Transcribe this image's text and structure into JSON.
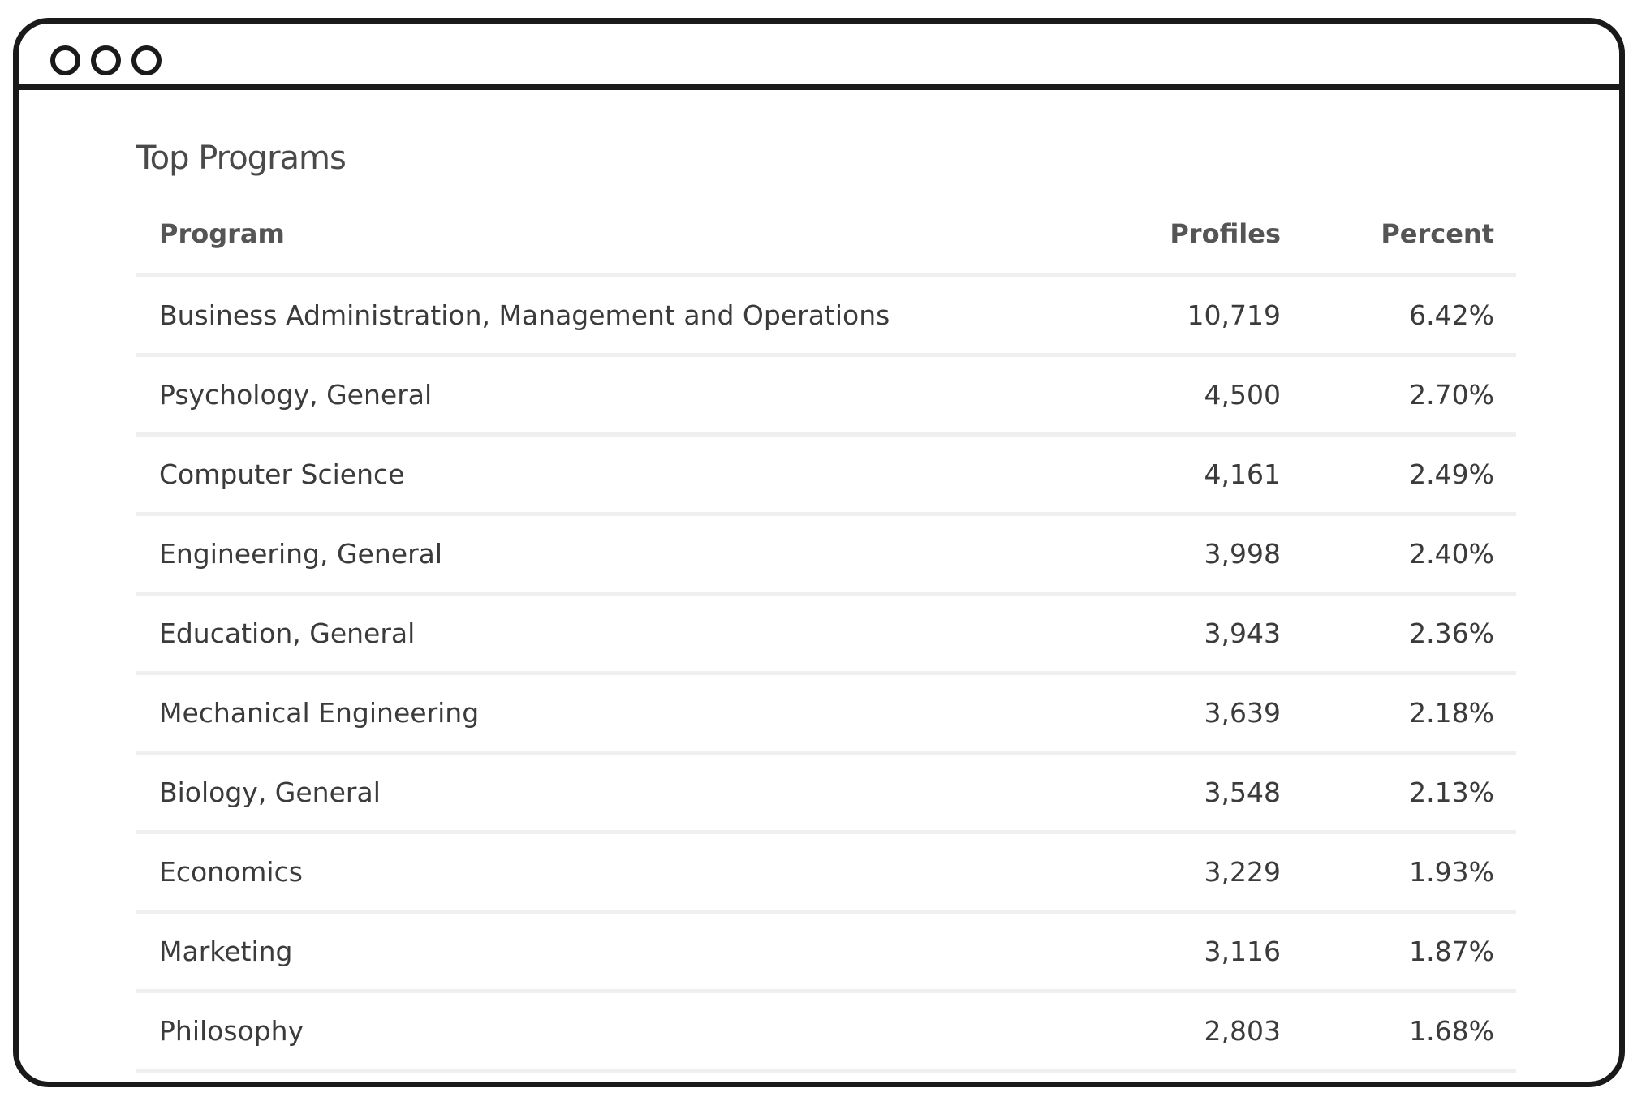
{
  "window": {
    "controls": [
      "dot",
      "dot",
      "dot"
    ]
  },
  "section": {
    "title": "Top Programs"
  },
  "table": {
    "columns": [
      "Program",
      "Profiles",
      "Percent"
    ],
    "rows": [
      {
        "program": "Business Administration, Management and Operations",
        "profiles": "10,719",
        "percent": "6.42%"
      },
      {
        "program": "Psychology, General",
        "profiles": "4,500",
        "percent": "2.70%"
      },
      {
        "program": "Computer Science",
        "profiles": "4,161",
        "percent": "2.49%"
      },
      {
        "program": "Engineering, General",
        "profiles": "3,998",
        "percent": "2.40%"
      },
      {
        "program": "Education, General",
        "profiles": "3,943",
        "percent": "2.36%"
      },
      {
        "program": "Mechanical Engineering",
        "profiles": "3,639",
        "percent": "2.18%"
      },
      {
        "program": "Biology, General",
        "profiles": "3,548",
        "percent": "2.13%"
      },
      {
        "program": "Economics",
        "profiles": "3,229",
        "percent": "1.93%"
      },
      {
        "program": "Marketing",
        "profiles": "3,116",
        "percent": "1.87%"
      },
      {
        "program": "Philosophy",
        "profiles": "2,803",
        "percent": "1.68%"
      }
    ]
  }
}
